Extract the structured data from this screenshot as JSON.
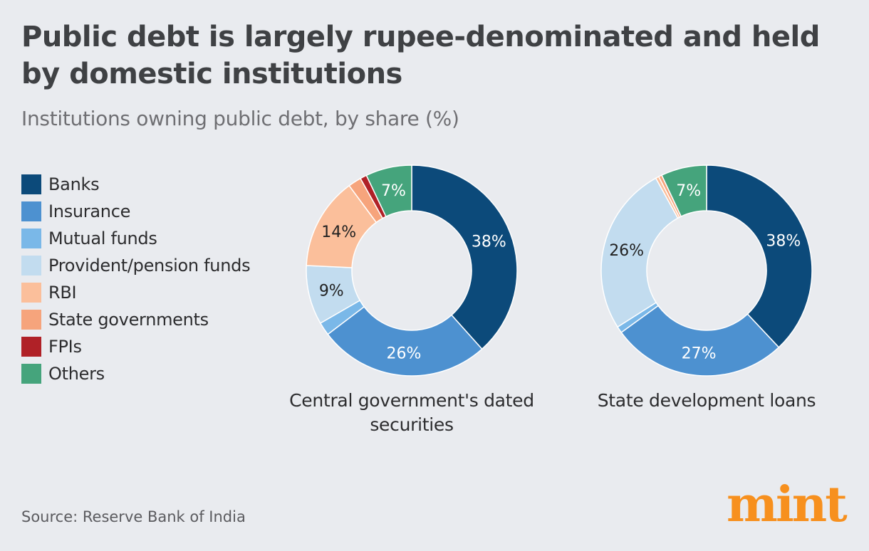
{
  "header": {
    "title": "Public debt is largely rupee-denominated and held by domestic institutions",
    "subtitle": "Institutions owning public debt, by share (%)"
  },
  "legend": [
    {
      "label": "Banks",
      "color": "#0c4a7a"
    },
    {
      "label": "Insurance",
      "color": "#4d91d0"
    },
    {
      "label": "Mutual funds",
      "color": "#7ab8e8"
    },
    {
      "label": "Provident/pension funds",
      "color": "#c2dcef"
    },
    {
      "label": "RBI",
      "color": "#fbbf9b"
    },
    {
      "label": "State governments",
      "color": "#f6a47c"
    },
    {
      "label": "FPIs",
      "color": "#b02127"
    },
    {
      "label": "Others",
      "color": "#45a47c"
    }
  ],
  "chart_data": [
    {
      "type": "pie",
      "title": "Central government's dated securities",
      "categories": [
        "Banks",
        "Insurance",
        "Mutual funds",
        "Provident/pension funds",
        "RBI",
        "State governments",
        "FPIs",
        "Others"
      ],
      "values": [
        38,
        26,
        2,
        9,
        14,
        2,
        1,
        7
      ],
      "labels": [
        "38%",
        "26%",
        "",
        "9%",
        "14%",
        "",
        "",
        "7%"
      ]
    },
    {
      "type": "pie",
      "title": "State development loans",
      "categories": [
        "Banks",
        "Insurance",
        "Mutual funds",
        "Provident/pension funds",
        "RBI",
        "State governments",
        "FPIs",
        "Others"
      ],
      "values": [
        38,
        27,
        1,
        26,
        0.5,
        0.5,
        0,
        7
      ],
      "labels": [
        "38%",
        "27%",
        "",
        "26%",
        "",
        "",
        "",
        "7%"
      ]
    }
  ],
  "footer": {
    "source": "Source: Reserve Bank of India",
    "logo": "mint"
  }
}
